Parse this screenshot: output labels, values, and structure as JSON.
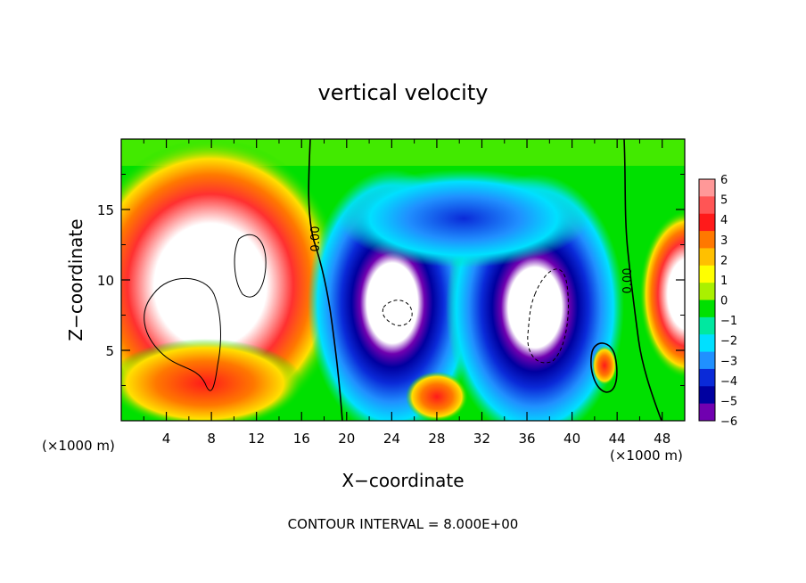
{
  "chart_data": {
    "type": "heatmap",
    "title": "vertical velocity",
    "xlabel": "X−coordinate",
    "ylabel": "Z−coordinate",
    "x_unit_left": "(×1000 m)",
    "x_unit_right": "(×1000 m)",
    "footer": "CONTOUR INTERVAL = 8.000E+00",
    "xlim": [
      0,
      50
    ],
    "ylim": [
      0,
      20
    ],
    "x_ticks": [
      4,
      8,
      12,
      16,
      20,
      24,
      28,
      32,
      36,
      40,
      44,
      48
    ],
    "y_ticks": [
      5,
      10,
      15
    ],
    "contour_labels": [
      {
        "text": "0.00",
        "x": 17.5,
        "y": 13
      },
      {
        "text": "0.00",
        "x": 44.0,
        "y": 10
      }
    ],
    "colorbar": {
      "labels": [
        "6",
        "5",
        "4",
        "3",
        "2",
        "1",
        "0",
        "−1",
        "−2",
        "−3",
        "−4",
        "−5",
        "−6"
      ],
      "values": [
        6,
        5,
        4,
        3,
        2,
        1,
        0,
        -1,
        -2,
        -3,
        -4,
        -5,
        -6
      ],
      "colors": [
        "#ff9898",
        "#ff5555",
        "#ff1a1a",
        "#ff7800",
        "#ffc000",
        "#ffff00",
        "#aaf000",
        "#00e000",
        "#00e8a0",
        "#00e0ff",
        "#2090ff",
        "#0a2ad8",
        "#0000a0",
        "#7000b0"
      ]
    },
    "regions": [
      {
        "comment": "positive updraft core (west)",
        "x": 8,
        "y": 10,
        "rx": 8,
        "ry": 7,
        "value": 6
      },
      {
        "comment": "negative downdraft (center-west)",
        "x": 25,
        "y": 10,
        "rx": 7,
        "ry": 8,
        "value": -6
      },
      {
        "comment": "negative downdraft (center-east)",
        "x": 38,
        "y": 8,
        "rx": 6,
        "ry": 7,
        "value": -6
      },
      {
        "comment": "positive (east edge)",
        "x": 49,
        "y": 9,
        "rx": 3,
        "ry": 5,
        "value": 5
      }
    ]
  }
}
